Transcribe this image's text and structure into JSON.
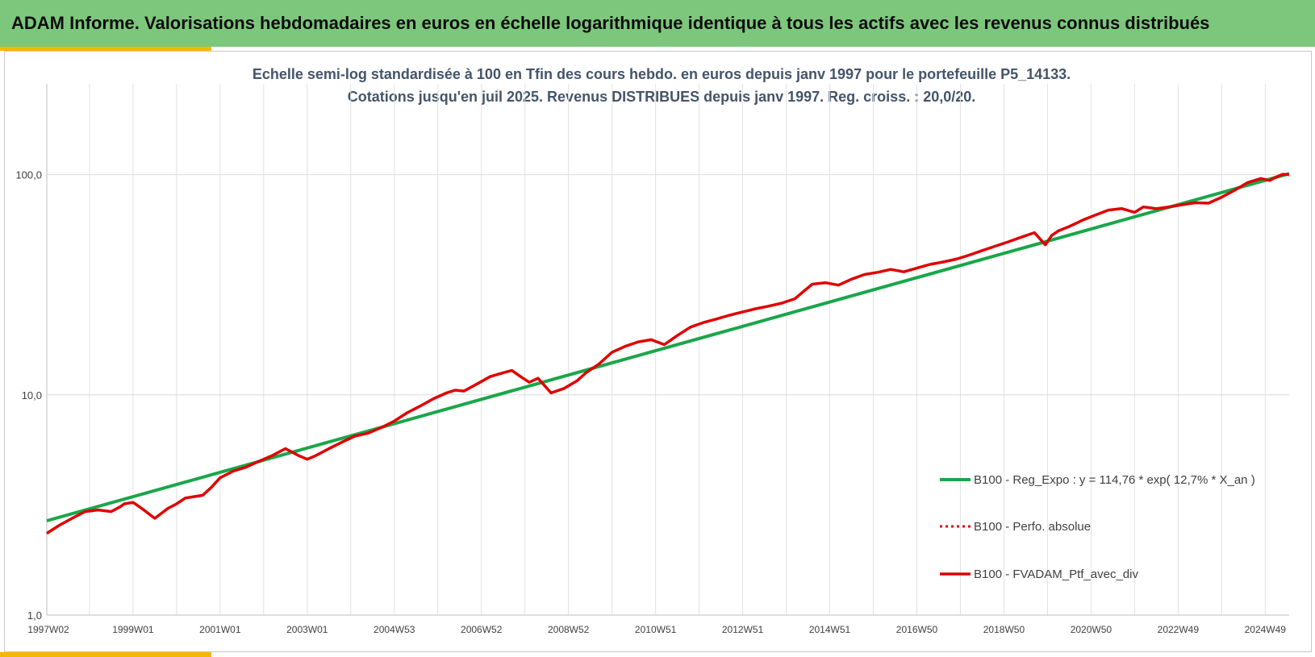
{
  "header": {
    "title": "ADAM Informe. Valorisations hebdomadaires en euros en échelle logarithmique identique à tous les actifs avec les revenus connus distribués"
  },
  "colors": {
    "banner": "#7dc77c",
    "accent": "#f5b800",
    "regression": "#1aa64a",
    "portfolio": "#e00000",
    "title_text": "#44546a"
  },
  "chart_data": {
    "type": "line",
    "title_line1": "Echelle semi-log standardisée à 100 en Tfin des cours hebdo.  en euros depuis janv 1997 pour le portefeuille P5_14133.",
    "title_line2": "Cotations jusqu'en juil 2025. Revenus DISTRIBUES depuis janv 1997. Reg. croiss. : 20,0/20.",
    "y_scale": "log",
    "ylim": [
      1,
      100
    ],
    "y_ticks": [
      {
        "value": 1,
        "label": "1,0"
      },
      {
        "value": 10,
        "label": "10,0"
      },
      {
        "value": 100,
        "label": "100,0"
      }
    ],
    "xlim": [
      1997.02,
      2025.55
    ],
    "x_ticks": [
      {
        "value": 1997.02,
        "label": "1997W02"
      },
      {
        "value": 1999.0,
        "label": "1999W01"
      },
      {
        "value": 2001.0,
        "label": "2001W01"
      },
      {
        "value": 2003.0,
        "label": "2003W01"
      },
      {
        "value": 2005.0,
        "label": "2004W53"
      },
      {
        "value": 2007.0,
        "label": "2006W52"
      },
      {
        "value": 2009.0,
        "label": "2008W52"
      },
      {
        "value": 2011.0,
        "label": "2010W51"
      },
      {
        "value": 2013.0,
        "label": "2012W51"
      },
      {
        "value": 2015.0,
        "label": "2014W51"
      },
      {
        "value": 2017.0,
        "label": "2016W50"
      },
      {
        "value": 2019.0,
        "label": "2018W50"
      },
      {
        "value": 2021.0,
        "label": "2020W50"
      },
      {
        "value": 2023.0,
        "label": "2022W49"
      },
      {
        "value": 2025.0,
        "label": "2024W49"
      }
    ],
    "grid": "vertical and horizontal",
    "legend_position": "right",
    "series": [
      {
        "name": "B100 - Reg_Expo : y = 114,76 * exp( 12,7% *  X_an )",
        "style": "solid-green",
        "x": [
          1997.02,
          2025.55
        ],
        "y": [
          2.68,
          101
        ]
      },
      {
        "name": "B100 - Perfo. absolue",
        "style": "dotted-red",
        "x": [],
        "y": []
      },
      {
        "name": "B100 - FVADAM_Ptf_avec_div",
        "style": "solid-red",
        "x": [
          1997.02,
          1997.3,
          1997.6,
          1997.9,
          1998.2,
          1998.5,
          1998.7,
          1998.8,
          1999.0,
          1999.2,
          1999.5,
          1999.8,
          2000.0,
          2000.2,
          2000.4,
          2000.6,
          2000.8,
          2001.0,
          2001.3,
          2001.6,
          2001.9,
          2002.2,
          2002.5,
          2002.8,
          2003.0,
          2003.2,
          2003.5,
          2003.8,
          2004.1,
          2004.4,
          2004.7,
          2005.0,
          2005.3,
          2005.6,
          2005.9,
          2006.2,
          2006.4,
          2006.6,
          2006.9,
          2007.2,
          2007.5,
          2007.7,
          2007.9,
          2008.1,
          2008.3,
          2008.6,
          2008.9,
          2009.2,
          2009.4,
          2009.7,
          2010.0,
          2010.3,
          2010.6,
          2010.9,
          2011.2,
          2011.5,
          2011.8,
          2012.1,
          2012.4,
          2012.7,
          2013.0,
          2013.3,
          2013.6,
          2013.9,
          2014.2,
          2014.4,
          2014.6,
          2014.9,
          2015.2,
          2015.5,
          2015.8,
          2016.1,
          2016.4,
          2016.7,
          2017.0,
          2017.3,
          2017.6,
          2017.9,
          2018.2,
          2018.5,
          2018.8,
          2019.1,
          2019.4,
          2019.7,
          2019.95,
          2020.1,
          2020.25,
          2020.5,
          2020.8,
          2021.1,
          2021.4,
          2021.7,
          2022.0,
          2022.2,
          2022.5,
          2022.8,
          2023.1,
          2023.4,
          2023.7,
          2024.0,
          2024.3,
          2024.6,
          2024.9,
          2025.1,
          2025.25,
          2025.4,
          2025.55
        ],
        "y": [
          2.35,
          2.55,
          2.75,
          2.95,
          3.0,
          2.95,
          3.1,
          3.2,
          3.25,
          3.05,
          2.75,
          3.05,
          3.2,
          3.4,
          3.45,
          3.5,
          3.8,
          4.2,
          4.5,
          4.7,
          5.0,
          5.3,
          5.7,
          5.3,
          5.1,
          5.3,
          5.7,
          6.1,
          6.5,
          6.7,
          7.1,
          7.6,
          8.3,
          8.9,
          9.6,
          10.2,
          10.5,
          10.4,
          11.2,
          12.1,
          12.6,
          12.9,
          12.1,
          11.4,
          11.9,
          10.2,
          10.7,
          11.6,
          12.6,
          13.8,
          15.6,
          16.6,
          17.4,
          17.8,
          16.9,
          18.6,
          20.3,
          21.3,
          22.1,
          23.0,
          23.8,
          24.6,
          25.3,
          26.1,
          27.3,
          29.5,
          31.8,
          32.3,
          31.5,
          33.5,
          35.2,
          36.0,
          37.1,
          36.2,
          37.6,
          39.1,
          40.1,
          41.3,
          43.1,
          45.2,
          47.3,
          49.5,
          52.0,
          54.5,
          48.0,
          53.0,
          55.5,
          58.1,
          62.0,
          65.5,
          69.0,
          70.1,
          67.4,
          71.3,
          70.0,
          71.4,
          73.0,
          74.5,
          74.2,
          79.0,
          85.0,
          92.1,
          96.0,
          94.0,
          97.5,
          100.3,
          100.0
        ]
      }
    ]
  }
}
